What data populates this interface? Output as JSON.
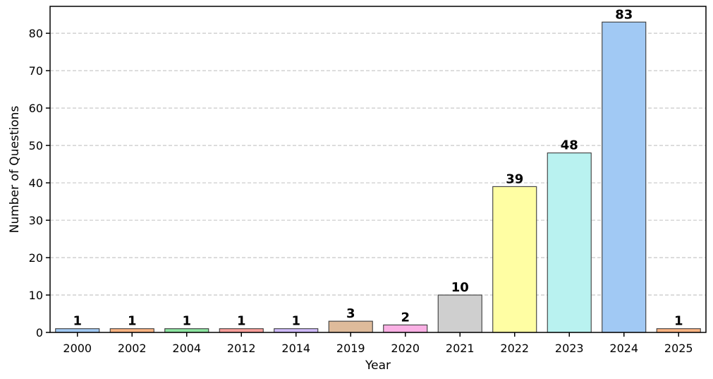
{
  "chart_data": {
    "type": "bar",
    "categories": [
      "2000",
      "2002",
      "2004",
      "2012",
      "2014",
      "2019",
      "2020",
      "2021",
      "2022",
      "2023",
      "2024",
      "2025"
    ],
    "values": [
      1,
      1,
      1,
      1,
      1,
      3,
      2,
      10,
      39,
      48,
      83,
      1
    ],
    "colors": [
      "#a1c9f4",
      "#ffb482",
      "#8de5a1",
      "#ff9f9b",
      "#d0bbff",
      "#debb9b",
      "#fab0e4",
      "#cfcfcf",
      "#fffea3",
      "#b9f2f0",
      "#a1c9f4",
      "#ffb482"
    ],
    "xlabel": "Year",
    "ylabel": "Number of Questions",
    "ylim": [
      0,
      87.2
    ],
    "yticks": [
      0,
      10,
      20,
      30,
      40,
      50,
      60,
      70,
      80
    ],
    "grid": "horizontal dashed",
    "data_labels": true
  }
}
